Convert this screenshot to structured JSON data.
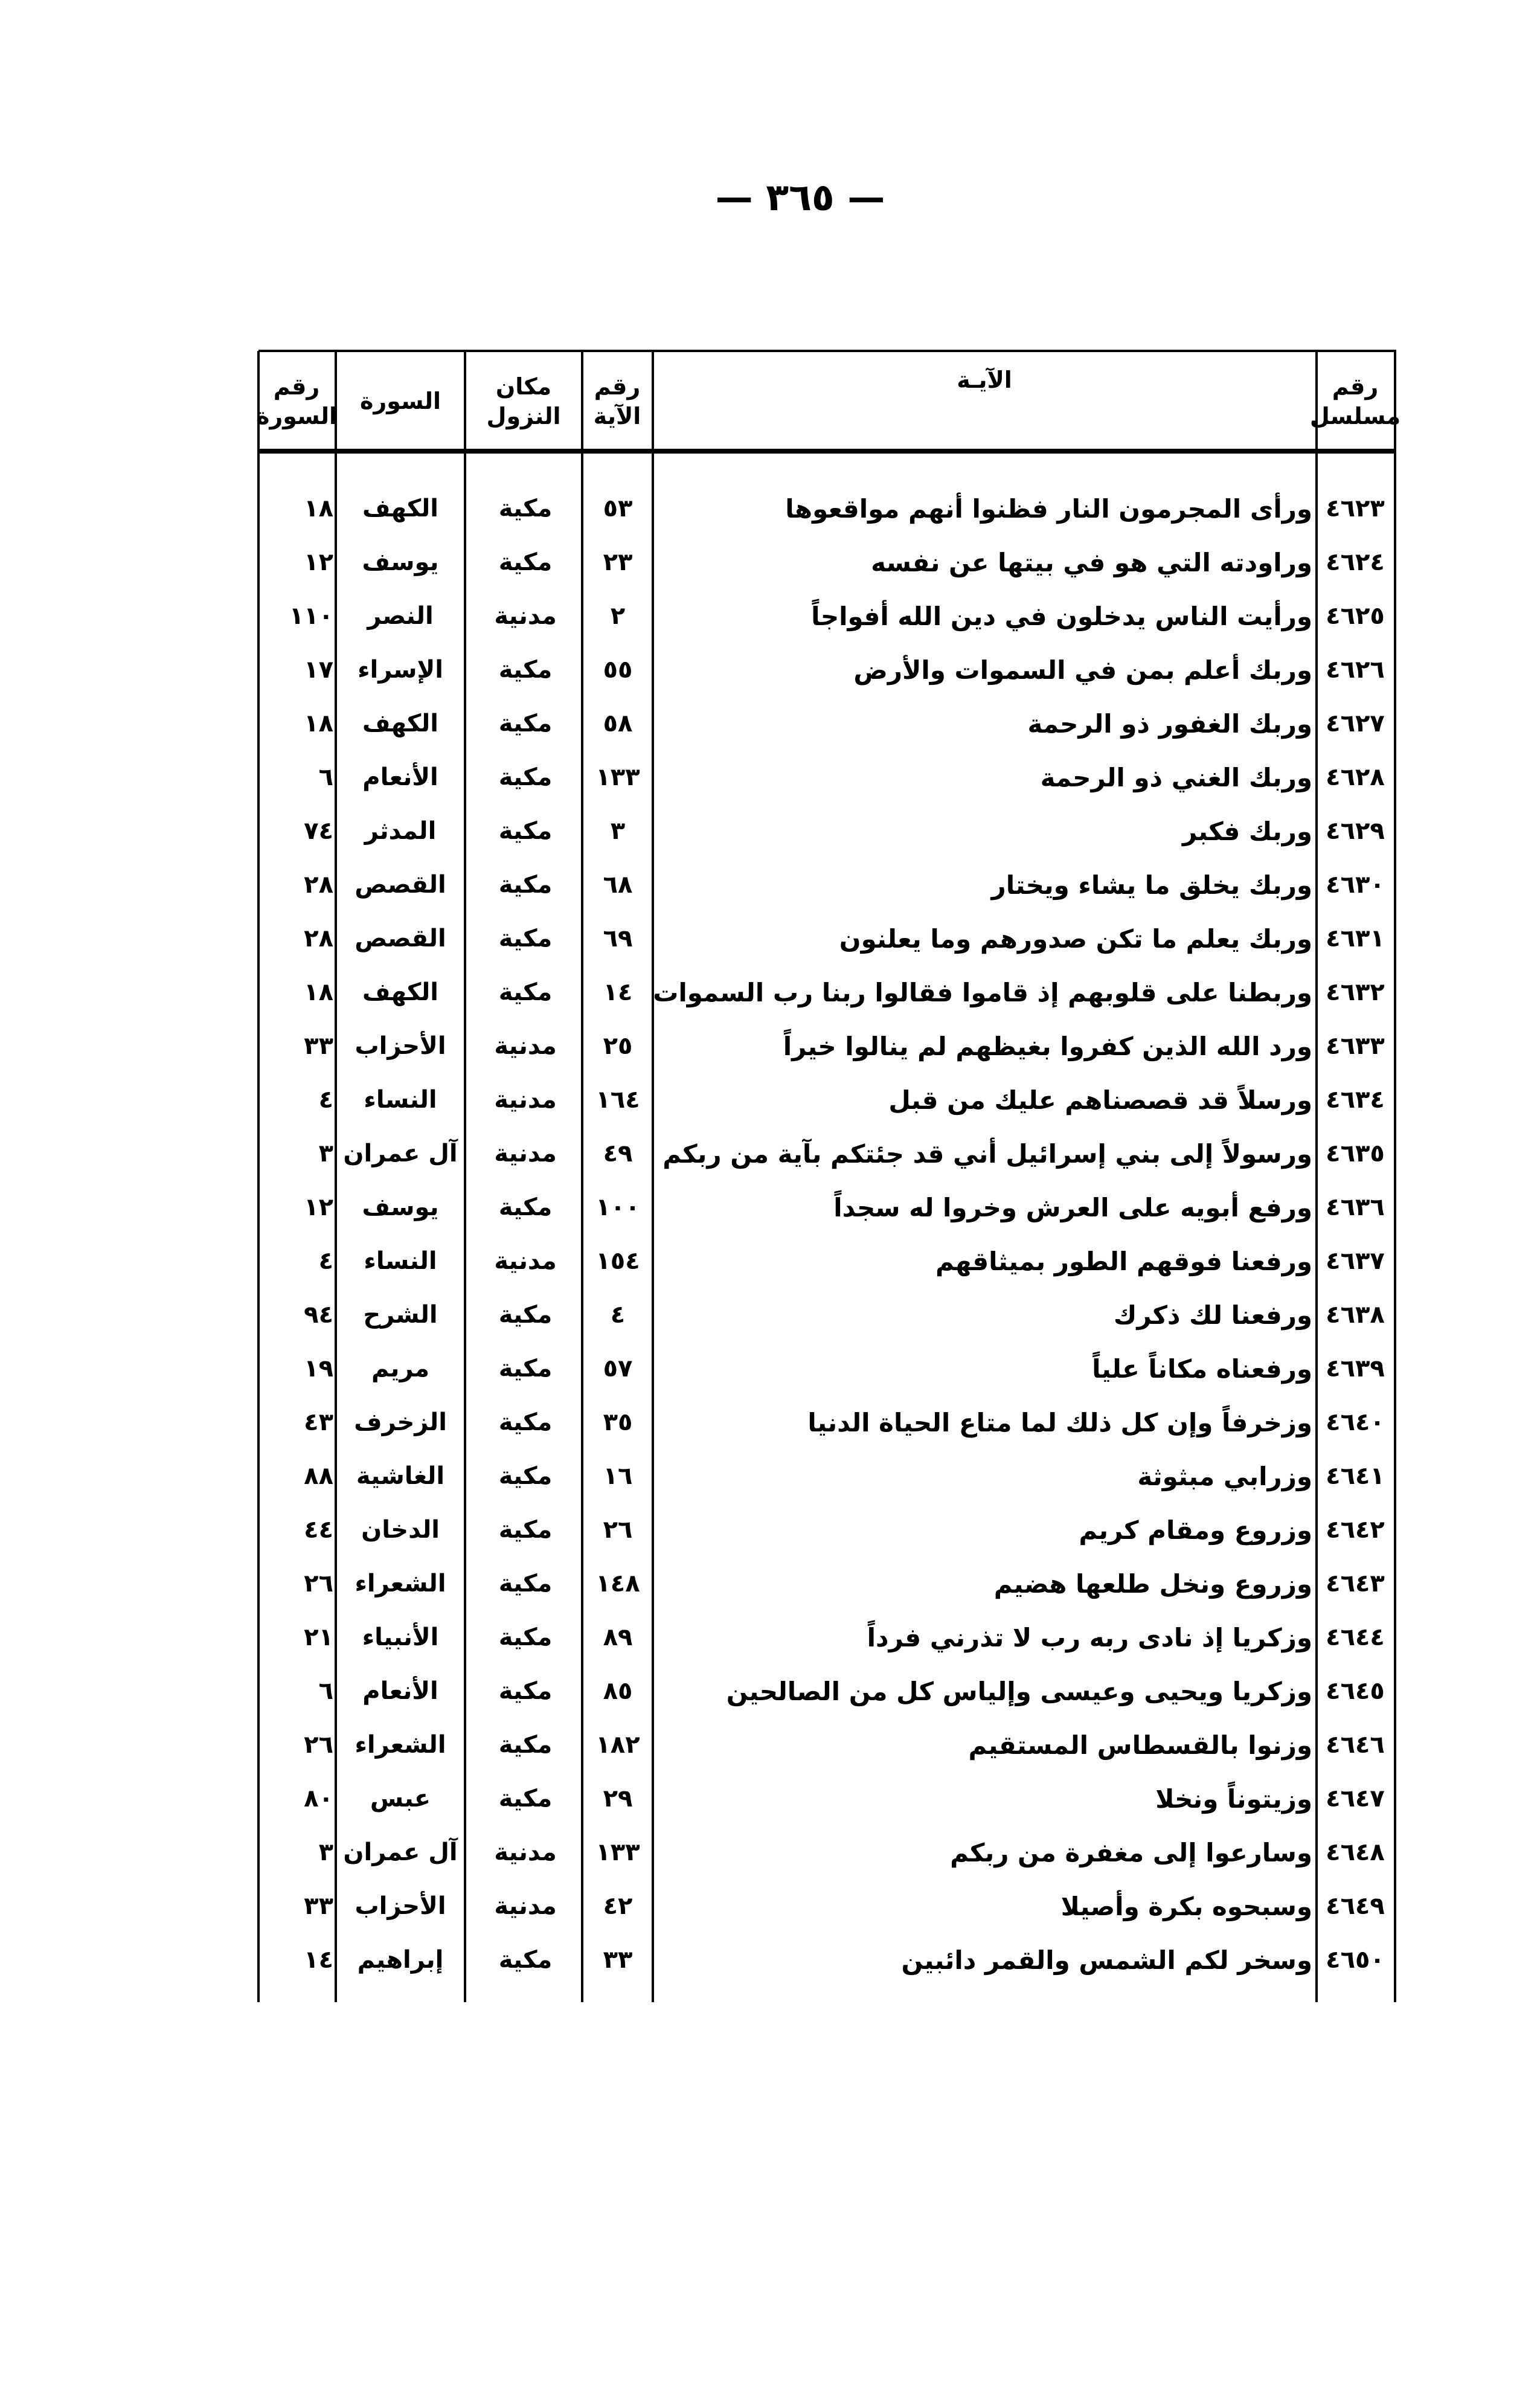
{
  "page_number": "— ٣٦٥ —",
  "headers": {
    "serial": "رقم مسلسل",
    "verse": "الآيـة",
    "ayah_number": "رقم الآية",
    "place": "مكان النزول",
    "surah": "السورة",
    "surah_number": "رقم السورة"
  },
  "rows": [
    {
      "serial": "٤٦٢٣",
      "verse": "ورأى المجرمون النار فظنوا أنهم مواقعوها",
      "ayah": "٥٣",
      "place": "مكية",
      "surah": "الكهف",
      "surah_no": "١٨"
    },
    {
      "serial": "٤٦٢٤",
      "verse": "وراودته التي هو في بيتها عن نفسه",
      "ayah": "٢٣",
      "place": "مكية",
      "surah": "يوسف",
      "surah_no": "١٢"
    },
    {
      "serial": "٤٦٢٥",
      "verse": "ورأيت الناس يدخلون في دين الله أفواجاً",
      "ayah": "٢",
      "place": "مدنية",
      "surah": "النصر",
      "surah_no": "١١٠"
    },
    {
      "serial": "٤٦٢٦",
      "verse": "وربك أعلم بمن في السموات والأرض",
      "ayah": "٥٥",
      "place": "مكية",
      "surah": "الإسراء",
      "surah_no": "١٧"
    },
    {
      "serial": "٤٦٢٧",
      "verse": "وربك الغفور ذو الرحمة",
      "ayah": "٥٨",
      "place": "مكية",
      "surah": "الكهف",
      "surah_no": "١٨"
    },
    {
      "serial": "٤٦٢٨",
      "verse": "وربك الغني ذو الرحمة",
      "ayah": "١٣٣",
      "place": "مكية",
      "surah": "الأنعام",
      "surah_no": "٦"
    },
    {
      "serial": "٤٦٢٩",
      "verse": "وربك فكبر",
      "ayah": "٣",
      "place": "مكية",
      "surah": "المدثر",
      "surah_no": "٧٤"
    },
    {
      "serial": "٤٦٣٠",
      "verse": "وربك يخلق ما يشاء ويختار",
      "ayah": "٦٨",
      "place": "مكية",
      "surah": "القصص",
      "surah_no": "٢٨"
    },
    {
      "serial": "٤٦٣١",
      "verse": "وربك يعلم ما تكن صدورهم وما يعلنون",
      "ayah": "٦٩",
      "place": "مكية",
      "surah": "القصص",
      "surah_no": "٢٨"
    },
    {
      "serial": "٤٦٣٢",
      "verse": "وربطنا على قلوبهم إذ قاموا فقالوا ربنا رب السموات",
      "ayah": "١٤",
      "place": "مكية",
      "surah": "الكهف",
      "surah_no": "١٨"
    },
    {
      "serial": "٤٦٣٣",
      "verse": "ورد الله الذين كفروا بغيظهم لم ينالوا خيراً",
      "ayah": "٢٥",
      "place": "مدنية",
      "surah": "الأحزاب",
      "surah_no": "٣٣"
    },
    {
      "serial": "٤٦٣٤",
      "verse": "ورسلاً قد قصصناهم عليك من قبل",
      "ayah": "١٦٤",
      "place": "مدنية",
      "surah": "النساء",
      "surah_no": "٤"
    },
    {
      "serial": "٤٦٣٥",
      "verse": "ورسولاً إلى بني إسرائيل أني قد جئتكم بآية من ربكم",
      "ayah": "٤٩",
      "place": "مدنية",
      "surah": "آل عمران",
      "surah_no": "٣"
    },
    {
      "serial": "٤٦٣٦",
      "verse": "ورفع أبويه على العرش وخروا له سجداً",
      "ayah": "١٠٠",
      "place": "مكية",
      "surah": "يوسف",
      "surah_no": "١٢"
    },
    {
      "serial": "٤٦٣٧",
      "verse": "ورفعنا فوقهم الطور بميثاقهم",
      "ayah": "١٥٤",
      "place": "مدنية",
      "surah": "النساء",
      "surah_no": "٤"
    },
    {
      "serial": "٤٦٣٨",
      "verse": "ورفعنا لك ذكرك",
      "ayah": "٤",
      "place": "مكية",
      "surah": "الشرح",
      "surah_no": "٩٤"
    },
    {
      "serial": "٤٦٣٩",
      "verse": "ورفعناه مكاناً علياً",
      "ayah": "٥٧",
      "place": "مكية",
      "surah": "مريم",
      "surah_no": "١٩"
    },
    {
      "serial": "٤٦٤٠",
      "verse": "وزخرفاً وإن كل ذلك لما متاع الحياة الدنيا",
      "ayah": "٣٥",
      "place": "مكية",
      "surah": "الزخرف",
      "surah_no": "٤٣"
    },
    {
      "serial": "٤٦٤١",
      "verse": "وزرابي مبثوثة",
      "ayah": "١٦",
      "place": "مكية",
      "surah": "الغاشية",
      "surah_no": "٨٨"
    },
    {
      "serial": "٤٦٤٢",
      "verse": "وزروع ومقام كريم",
      "ayah": "٢٦",
      "place": "مكية",
      "surah": "الدخان",
      "surah_no": "٤٤"
    },
    {
      "serial": "٤٦٤٣",
      "verse": "وزروع ونخل طلعها هضيم",
      "ayah": "١٤٨",
      "place": "مكية",
      "surah": "الشعراء",
      "surah_no": "٢٦"
    },
    {
      "serial": "٤٦٤٤",
      "verse": "وزكريا إذ نادى ربه رب لا تذرني فرداً",
      "ayah": "٨٩",
      "place": "مكية",
      "surah": "الأنبياء",
      "surah_no": "٢١"
    },
    {
      "serial": "٤٦٤٥",
      "verse": "وزكريا ويحيى وعيسى وإلياس كل من الصالحين",
      "ayah": "٨٥",
      "place": "مكية",
      "surah": "الأنعام",
      "surah_no": "٦"
    },
    {
      "serial": "٤٦٤٦",
      "verse": "وزنوا بالقسطاس المستقيم",
      "ayah": "١٨٢",
      "place": "مكية",
      "surah": "الشعراء",
      "surah_no": "٢٦"
    },
    {
      "serial": "٤٦٤٧",
      "verse": "وزيتوناً ونخلا",
      "ayah": "٢٩",
      "place": "مكية",
      "surah": "عبس",
      "surah_no": "٨٠"
    },
    {
      "serial": "٤٦٤٨",
      "verse": "وسارعوا إلى مغفرة من ربكم",
      "ayah": "١٣٣",
      "place": "مدنية",
      "surah": "آل عمران",
      "surah_no": "٣"
    },
    {
      "serial": "٤٦٤٩",
      "verse": "وسبحوه بكرة وأصيلا",
      "ayah": "٤٢",
      "place": "مدنية",
      "surah": "الأحزاب",
      "surah_no": "٣٣"
    },
    {
      "serial": "٤٦٥٠",
      "verse": "وسخر لكم الشمس والقمر دائبين",
      "ayah": "٣٣",
      "place": "مكية",
      "surah": "إبراهيم",
      "surah_no": "١٤"
    }
  ]
}
